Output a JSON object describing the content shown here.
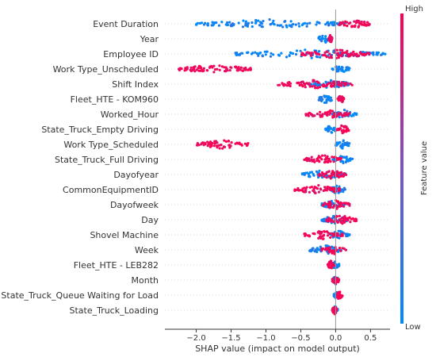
{
  "chart_data": {
    "type": "scatter",
    "subtype": "shap-beeswarm",
    "title": "",
    "xlabel": "SHAP value (impact on model output)",
    "ylabel": "",
    "xlim": [
      -2.45,
      0.78
    ],
    "xticks": [
      -2.0,
      -1.5,
      -1.0,
      -0.5,
      0.0,
      0.5
    ],
    "xtick_labels": [
      "−2.0",
      "−1.5",
      "−1.0",
      "−0.5",
      "0.0",
      "0.5"
    ],
    "grid": false,
    "colorbar": {
      "label": "Feature value",
      "high_label": "High",
      "low_label": "Low",
      "high_color": "#ff0052",
      "low_color": "#008bfb"
    },
    "features": [
      {
        "name": "Event Duration",
        "low_range": [
          -2.0,
          0.15
        ],
        "high_range": [
          0.05,
          0.5
        ],
        "spread": "wide-low"
      },
      {
        "name": "Year",
        "low_range": [
          -0.27,
          -0.05
        ],
        "high_range": [
          -0.1,
          -0.05
        ],
        "spread": "tight"
      },
      {
        "name": "Employee ID",
        "low_range": [
          -1.45,
          0.72
        ],
        "high_range": [
          -0.5,
          0.5
        ],
        "spread": "mixed"
      },
      {
        "name": "Work Type_Unscheduled",
        "low_range": [
          -0.05,
          0.2
        ],
        "high_range": [
          -2.25,
          -1.2
        ],
        "spread": "high-negative"
      },
      {
        "name": "Shift Index",
        "low_range": [
          -0.35,
          0.2
        ],
        "high_range": [
          -0.85,
          0.25
        ],
        "spread": "mixed"
      },
      {
        "name": "Fleet_HTE - KOM960",
        "low_range": [
          -0.25,
          -0.05
        ],
        "high_range": [
          0.03,
          0.12
        ],
        "spread": "split"
      },
      {
        "name": "Worked_Hour",
        "low_range": [
          -0.05,
          0.3
        ],
        "high_range": [
          -0.45,
          0.2
        ],
        "spread": "mixed"
      },
      {
        "name": "State_Truck_Empty Driving",
        "low_range": [
          -0.15,
          0.0
        ],
        "high_range": [
          0.0,
          0.2
        ],
        "spread": "split"
      },
      {
        "name": "Work Type_Scheduled",
        "low_range": [
          0.0,
          0.2
        ],
        "high_range": [
          -2.0,
          -1.25
        ],
        "spread": "high-negative"
      },
      {
        "name": "State_Truck_Full Driving",
        "low_range": [
          -0.05,
          0.25
        ],
        "high_range": [
          -0.45,
          0.1
        ],
        "spread": "mixed"
      },
      {
        "name": "Dayofyear",
        "low_range": [
          -0.5,
          0.15
        ],
        "high_range": [
          -0.25,
          0.15
        ],
        "spread": "mixed"
      },
      {
        "name": "CommonEquipmentID",
        "low_range": [
          -0.1,
          0.15
        ],
        "high_range": [
          -0.6,
          0.1
        ],
        "spread": "mixed"
      },
      {
        "name": "Dayofweek",
        "low_range": [
          -0.2,
          0.15
        ],
        "high_range": [
          -0.2,
          0.2
        ],
        "spread": "mixed"
      },
      {
        "name": "Day",
        "low_range": [
          -0.2,
          0.2
        ],
        "high_range": [
          -0.15,
          0.3
        ],
        "spread": "mixed"
      },
      {
        "name": "Shovel Machine",
        "low_range": [
          -0.1,
          0.2
        ],
        "high_range": [
          -0.45,
          0.1
        ],
        "spread": "mixed"
      },
      {
        "name": "Week",
        "low_range": [
          -0.38,
          0.1
        ],
        "high_range": [
          -0.2,
          0.15
        ],
        "spread": "mixed"
      },
      {
        "name": "Fleet_HTE - LEB282",
        "low_range": [
          -0.05,
          0.05
        ],
        "high_range": [
          -0.12,
          -0.02
        ],
        "spread": "tight"
      },
      {
        "name": "Month",
        "low_range": [
          -0.05,
          0.05
        ],
        "high_range": [
          -0.05,
          0.05
        ],
        "spread": "tight"
      },
      {
        "name": "State_Truck_Queue Waiting for Load",
        "low_range": [
          -0.03,
          0.05
        ],
        "high_range": [
          0.0,
          0.1
        ],
        "spread": "tight"
      },
      {
        "name": "State_Truck_Loading",
        "low_range": [
          -0.05,
          0.03
        ],
        "high_range": [
          -0.05,
          0.02
        ],
        "spread": "tight"
      }
    ]
  }
}
